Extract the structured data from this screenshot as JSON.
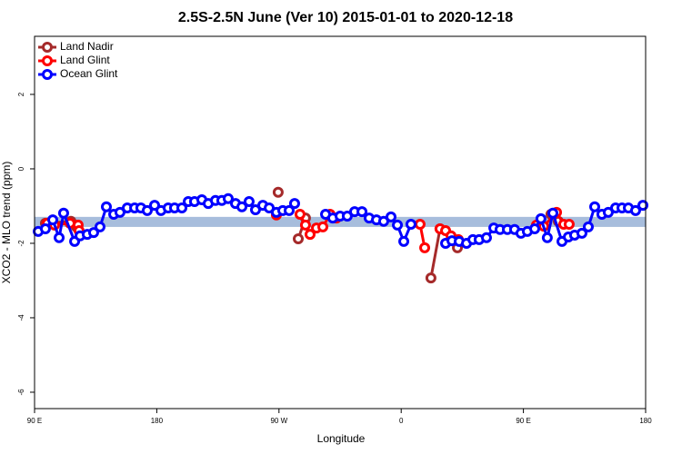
{
  "chart_data": {
    "type": "line",
    "title": "2.5S-2.5N June (Ver 10)   2015-01-01 to 2020-12-18",
    "xlabel": "Longitude",
    "ylabel": "XCO2 - MLO trend (ppm)",
    "xlim": [
      90,
      540
    ],
    "ylim": [
      -6.44,
      3.56
    ],
    "xticks": [
      {
        "value": 90,
        "label": "90 E"
      },
      {
        "value": 180,
        "label": "180"
      },
      {
        "value": 270,
        "label": "90 W"
      },
      {
        "value": 360,
        "label": "0"
      },
      {
        "value": 450,
        "label": "90 E"
      },
      {
        "value": 540,
        "label": "180"
      }
    ],
    "yticks": [
      -6,
      -4,
      -2,
      0,
      2
    ],
    "legend": "top-left",
    "band": [
      -1.56,
      -1.29
    ],
    "band_color": "#a7bddc",
    "series": [
      {
        "name": "Land Nadir",
        "color": "#a52a2a",
        "x": [
          98.0,
          116.8,
          120.8,
          null,
          269.4,
          null,
          284.2,
          289.5,
          null,
          381.9,
          388.6,
          null,
          401.4,
          null,
          470.3,
          475.7
        ],
        "values": [
          -1.46,
          -1.41,
          -1.56,
          null,
          -0.63,
          null,
          -1.88,
          -1.32,
          null,
          -2.93,
          -1.61,
          null,
          -2.12,
          null,
          -1.22,
          -1.41
        ]
      },
      {
        "name": "Land Glint",
        "color": "#ff0000",
        "x": [
          99.4,
          104.7,
          116.1,
          122.1,
          122.8,
          null,
          268.1,
          null,
          285.5,
          289.5,
          292.9,
          297.6,
          302.3,
          307.6,
          312.3,
          null,
          373.9,
          377.3,
          null,
          388.6,
          392.7,
          396.7,
          402.1,
          null,
          459.6,
          465.0,
          474.4,
          479.7,
          483.7
        ],
        "values": [
          -1.46,
          -1.51,
          -1.46,
          -1.51,
          -1.66,
          null,
          -1.24,
          null,
          -1.22,
          -1.51,
          -1.76,
          -1.59,
          -1.56,
          -1.22,
          -1.32,
          null,
          -1.49,
          -2.12,
          null,
          -1.61,
          -1.66,
          -1.8,
          -1.9,
          null,
          -1.51,
          -1.54,
          -1.17,
          -1.49,
          -1.49
        ]
      },
      {
        "name": "Ocean Glint",
        "color": "#0000ff",
        "x": [
          92.7,
          98.0,
          103.4,
          108.1,
          111.4,
          119.5,
          123.5,
          128.8,
          133.5,
          138.2,
          142.9,
          148.3,
          152.9,
          158.3,
          163.7,
          168.3,
          173.0,
          178.4,
          183.1,
          188.4,
          193.1,
          198.5,
          203.2,
          207.8,
          213.2,
          217.9,
          223.2,
          227.9,
          232.6,
          238.0,
          242.7,
          248.0,
          252.7,
          258.1,
          262.8,
          268.1,
          272.8,
          277.5,
          281.5,
          null,
          304.3,
          309.6,
          315.0,
          320.3,
          325.7,
          331.1,
          336.4,
          341.8,
          347.1,
          352.5,
          357.2,
          361.9,
          367.2,
          null,
          392.7,
          397.4,
          402.7,
          408.1,
          412.8,
          417.4,
          422.8,
          428.2,
          432.8,
          438.2,
          443.5,
          448.2,
          452.9,
          458.3,
          462.9,
          467.6,
          471.7,
          478.4,
          483.1,
          487.7,
          493.1,
          497.8,
          502.5,
          507.8,
          512.5,
          517.9,
          522.6,
          527.3,
          532.6,
          538.0
        ],
        "values": [
          -1.68,
          -1.61,
          -1.37,
          -1.85,
          -1.19,
          -1.95,
          -1.8,
          -1.76,
          -1.71,
          -1.56,
          -1.02,
          -1.22,
          -1.17,
          -1.05,
          -1.05,
          -1.05,
          -1.12,
          -0.98,
          -1.12,
          -1.05,
          -1.05,
          -1.05,
          -0.88,
          -0.88,
          -0.83,
          -0.93,
          -0.85,
          -0.85,
          -0.8,
          -0.93,
          -1.02,
          -0.88,
          -1.1,
          -0.98,
          -1.05,
          -1.17,
          -1.12,
          -1.12,
          -0.93,
          null,
          -1.22,
          -1.32,
          -1.27,
          -1.27,
          -1.15,
          -1.15,
          -1.32,
          -1.37,
          -1.41,
          -1.29,
          -1.51,
          -1.95,
          -1.49,
          null,
          -2.0,
          -1.93,
          -1.95,
          -2.0,
          -1.9,
          -1.9,
          -1.85,
          -1.59,
          -1.63,
          -1.63,
          -1.63,
          -1.73,
          -1.68,
          -1.61,
          -1.34,
          -1.85,
          -1.19,
          -1.95,
          -1.83,
          -1.78,
          -1.73,
          -1.56,
          -1.02,
          -1.22,
          -1.17,
          -1.05,
          -1.05,
          -1.05,
          -1.12,
          -0.98
        ]
      }
    ]
  }
}
